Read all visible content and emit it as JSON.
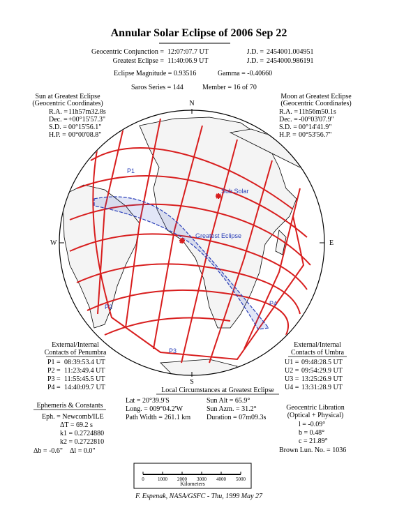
{
  "header": {
    "title": "Annular Solar Eclipse of 2006 Sep 22",
    "rows": [
      [
        "Geocentric Conjunction =",
        "12:07:07.7 UT",
        "J.D. =",
        "2454001.004951"
      ],
      [
        "Greatest Eclipse =",
        "11:40:06.9 UT",
        "J.D. =",
        "2454000.986191"
      ]
    ],
    "magnitude": "Eclipse Magnitude = 0.93516",
    "gamma": "Gamma = -0.40660",
    "saros": "Saros Series = 144",
    "member": "Member = 16 of 70"
  },
  "sun": {
    "title": "Sun at Greatest Eclipse",
    "subtitle": "(Geocentric Coordinates)",
    "rows": [
      [
        "R.A. =",
        "11h57m32.8s"
      ],
      [
        "Dec. =",
        "+00°15'57.3\""
      ],
      [
        "S.D. =",
        "00°15'56.1\""
      ],
      [
        "H.P. =",
        "00°00'08.8\""
      ]
    ]
  },
  "moon": {
    "title": "Moon at Greatest Eclipse",
    "subtitle": "(Geocentric Coordinates)",
    "rows": [
      [
        "R.A. =",
        "11h56m50.1s"
      ],
      [
        "Dec. =",
        "-00°03'07.9\""
      ],
      [
        "S.D. =",
        "00°14'41.9\""
      ],
      [
        "H.P. =",
        "00°53'56.7\""
      ]
    ]
  },
  "compass": {
    "north": "N",
    "south": "S",
    "east": "E",
    "west": "W"
  },
  "map": {
    "p1": "P1",
    "p2": "P2",
    "p3": "P3",
    "p4": "P4",
    "sub_solar": "Sub Solar",
    "greatest": "Greatest Eclipse"
  },
  "penumbra": {
    "title": "External/Internal",
    "subtitle": "Contacts of Penumbra",
    "rows": [
      [
        "P1 =",
        "08:39:53.4 UT"
      ],
      [
        "P2 =",
        "11:23:49.4 UT"
      ],
      [
        "P3 =",
        "11:55:45.5 UT"
      ],
      [
        "P4 =",
        "14:40:09.7 UT"
      ]
    ]
  },
  "umbra": {
    "title": "External/Internal",
    "subtitle": "Contacts of Umbra",
    "rows": [
      [
        "U1 =",
        "09:48:28.5 UT"
      ],
      [
        "U2 =",
        "09:54:29.9 UT"
      ],
      [
        "U3 =",
        "13:25:26.9 UT"
      ],
      [
        "U4 =",
        "13:31:28.9 UT"
      ]
    ]
  },
  "local": {
    "title": "Local Circumstances at Greatest Eclipse",
    "rows": [
      [
        "Lat =  20°39.9'S",
        "Sun Alt =   65.9°"
      ],
      [
        "Long. = 009°04.2'W",
        "Sun Azm. =   31.2°"
      ],
      [
        "Path Width = 261.1 km",
        "Duration =   07m09.3s"
      ]
    ]
  },
  "ephemeris": {
    "title": "Ephemeris & Constants",
    "rows": [
      "Eph. = Newcomb/ILE",
      "ΔT =     69.2  s",
      "k1 = 0.2724880",
      "k2 = 0.2722810"
    ],
    "db": "Δb =  -0.6\"",
    "dl": "Δl =   0.0\""
  },
  "libration": {
    "title": "Geocentric Libration",
    "subtitle": "(Optical + Physical)",
    "rows": [
      "l =   -0.09°",
      "b =    0.48°",
      "c =  21.89°"
    ],
    "brown": "Brown Lun. No. = 1036"
  },
  "scale": {
    "ticks": [
      "0",
      "1000",
      "2000",
      "3000",
      "4000",
      "5000"
    ],
    "unit": "Kilometers"
  },
  "credit": "F. Espenak, NASA/GSFC - Thu, 1999 May 27"
}
